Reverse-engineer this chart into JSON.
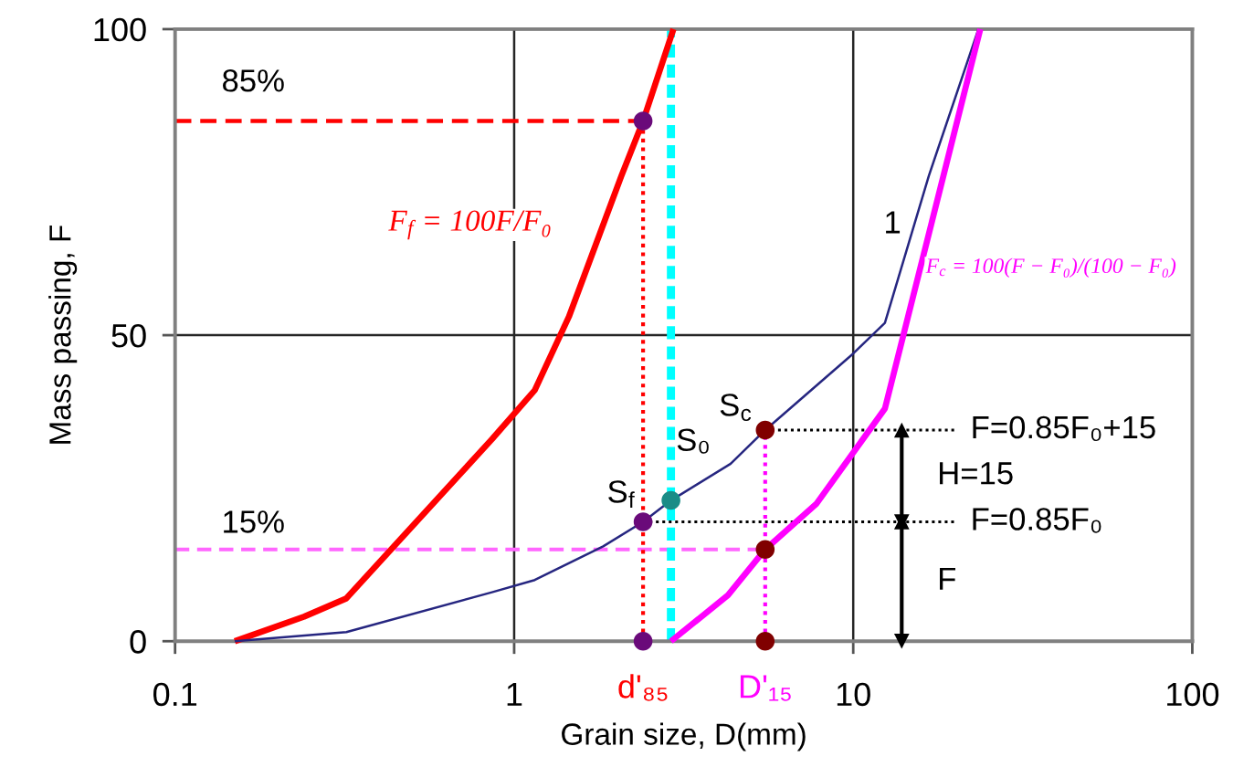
{
  "chart_data": {
    "type": "line",
    "xlabel": "Grain size, D(mm)",
    "ylabel": "Mass passing, F",
    "log": "x",
    "xlim": [
      0.1,
      100
    ],
    "ylim": [
      0,
      100
    ],
    "xticks": [
      0.1,
      1,
      10,
      100
    ],
    "yticks": [
      0,
      50,
      100
    ],
    "grid": true,
    "series": [
      {
        "name": "F$_{f}$ = 100F/F₀",
        "color": "#ff0000",
        "x": [
          0.15,
          0.24,
          0.32,
          0.86,
          1.15,
          1.45,
          2.07,
          2.4,
          2.95
        ],
        "values": [
          0,
          4,
          7,
          33,
          41,
          53,
          76,
          85,
          100
        ]
      },
      {
        "color": "#262680",
        "x": [
          0.15,
          0.32,
          0.86,
          1.15,
          1.83,
          2.4,
          2.9,
          4.35,
          5.5,
          10,
          12.4,
          16.7,
          23.4
        ],
        "values": [
          0,
          1.5,
          8,
          10,
          15.5,
          19.5,
          23,
          29,
          34.5,
          47,
          52,
          76,
          100
        ]
      },
      {
        "name": "F$_{c}$ = 100(F − F₀)/(100 − F₀)",
        "color": "#ff00ff",
        "x": [
          2.9,
          4.27,
          5.5,
          7.8,
          12.4,
          23.7
        ],
        "values": [
          0,
          7.5,
          15,
          22.5,
          38,
          100
        ]
      },
      {
        "color": "#ff0000",
        "line_style": "dashed",
        "x": [
          0.1,
          2.4
        ],
        "values": [
          85,
          85
        ]
      },
      {
        "color": "#ff66ff",
        "line_style": "dashed",
        "x": [
          0.1,
          5.5
        ],
        "values": [
          15,
          15
        ]
      },
      {
        "name": "d'₈₅",
        "color": "#ff0000",
        "line_style": "dotted",
        "x": [
          2.4,
          2.4
        ],
        "values": [
          0,
          85
        ]
      },
      {
        "name": "D'₁₅",
        "color": "#ff00ff",
        "line_style": "dotted",
        "x": [
          5.5,
          5.5
        ],
        "values": [
          0,
          34.5
        ]
      },
      {
        "color": "#00ffff",
        "line_style": "dashed",
        "x": [
          2.9,
          2.9
        ],
        "values": [
          0,
          100
        ]
      },
      {
        "color": "#000000",
        "line_style": "dotted",
        "x": [
          5.5,
          20
        ],
        "values": [
          34.5,
          34.5
        ]
      },
      {
        "color": "#000000",
        "line_style": "dotted",
        "x": [
          2.4,
          20
        ],
        "values": [
          19.5,
          19.5
        ]
      },
      {
        "name": "H=15",
        "color": "#000000",
        "marker": "triangle",
        "x": [
          13.9,
          13.9
        ],
        "values": [
          19.5,
          34.5
        ]
      },
      {
        "name": "F",
        "color": "#000000",
        "marker": "triangle",
        "x": [
          13.9,
          13.9
        ],
        "values": [
          0,
          19.5
        ]
      },
      {
        "type": "scatter",
        "marker": "circle",
        "x": [
          2.4,
          2.4,
          2.4,
          2.9,
          5.5,
          5.5,
          5.5
        ],
        "values": [
          85,
          19.5,
          0,
          23,
          34.5,
          15,
          0
        ],
        "colors": [
          "#6a0a7a",
          "#6a0a7a",
          "#6a0a7a",
          "#1a8c86",
          "#800000",
          "#800000",
          "#800000"
        ]
      }
    ],
    "annotations": [
      {
        "text": "85%",
        "x": 0.17,
        "y": 85
      },
      {
        "text": "15%",
        "x": 0.17,
        "y": 15
      },
      {
        "text": "1",
        "x": 15.1,
        "y": 68
      },
      {
        "text": "S$_{f}$",
        "x": 2.4,
        "y": 19.5
      },
      {
        "text": "S₀",
        "x": 2.9,
        "y": 23
      },
      {
        "text": "S$_{c}$",
        "x": 5.5,
        "y": 34.5
      },
      {
        "text": "F=0.85F₀+15",
        "x": 20,
        "y": 34.5
      },
      {
        "text": "F=0.85F₀",
        "x": 20,
        "y": 19.5
      }
    ]
  }
}
